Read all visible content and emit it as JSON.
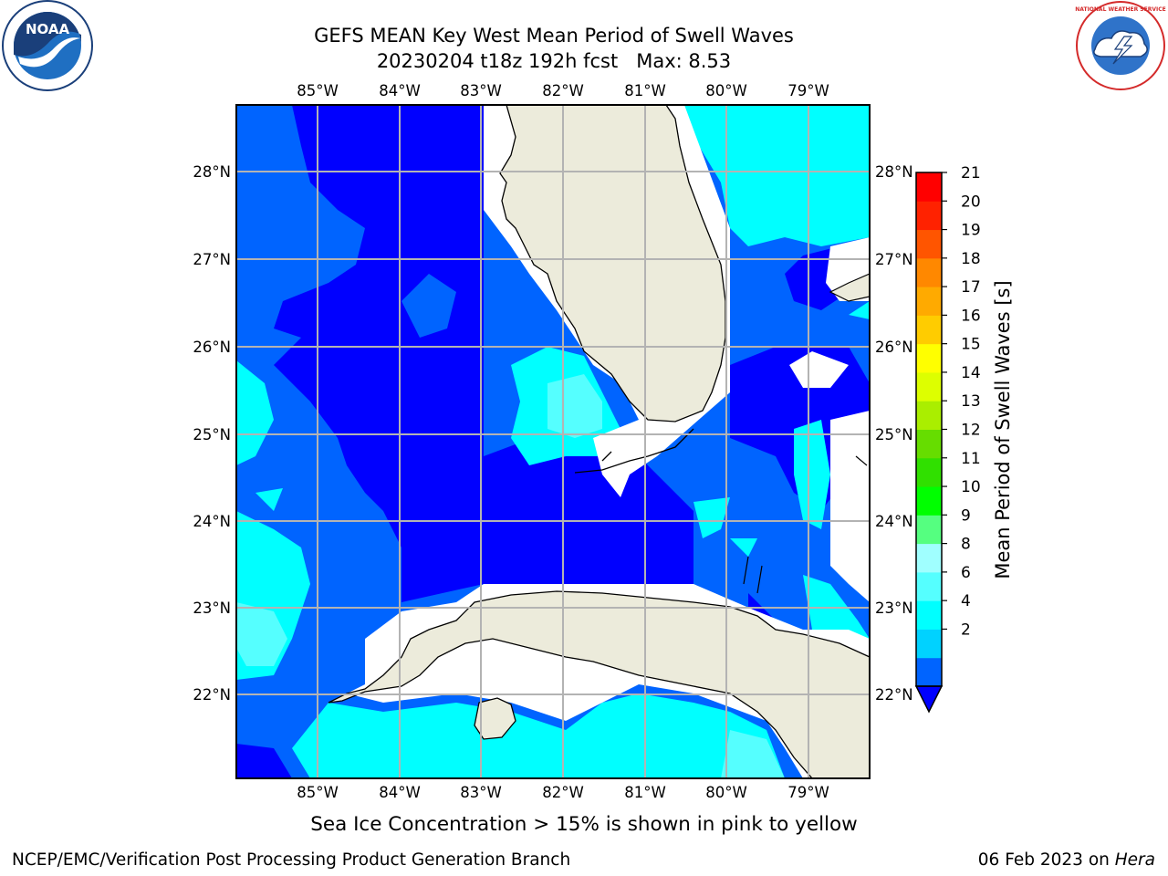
{
  "title": {
    "line1": "GEFS MEAN Key West Mean Period of Swell Waves",
    "line2": "20230204 t18z 192h fcst   Max: 8.53"
  },
  "footer": {
    "ice_note": "Sea Ice Concentration > 15% is shown in pink to yellow",
    "credit": "NCEP/EMC/Verification Post Processing Product Generation Branch",
    "date": "06 Feb 2023",
    "date_on": "on",
    "host": "Hera"
  },
  "logos": {
    "left": {
      "icon": "noaa-logo",
      "text": "NOAA"
    },
    "right": {
      "icon": "nws-logo",
      "text": "NATIONAL WEATHER SERVICE"
    }
  },
  "map": {
    "lon_labels": [
      "85°W",
      "84°W",
      "83°W",
      "82°W",
      "81°W",
      "80°W",
      "79°W"
    ],
    "lat_labels_left": [
      "28°N",
      "27°N",
      "26°N",
      "25°N",
      "24°N",
      "23°N",
      "22°N"
    ],
    "lat_labels_right": [
      "28°N",
      "27°N",
      "26°N",
      "25°N",
      "24°N",
      "23°N",
      "22°N"
    ],
    "land_color": "#ecebdb",
    "grid_color": "#b3b3b3"
  },
  "colorbar": {
    "label": "Mean Period of Swell Waves [s]",
    "ticks": [
      "2",
      "4",
      "6",
      "8",
      "9",
      "10",
      "11",
      "12",
      "13",
      "14",
      "15",
      "16",
      "17",
      "18",
      "19",
      "20",
      "21"
    ],
    "colors": [
      "#0064ff",
      "#00d2ff",
      "#00ffff",
      "#55ffff",
      "#a0ffff",
      "#55ff80",
      "#00ff00",
      "#30e000",
      "#66dd00",
      "#aaee00",
      "#ddff00",
      "#ffff00",
      "#ffcc00",
      "#ffaa00",
      "#ff8800",
      "#ff5500",
      "#ff2200",
      "#ff0000"
    ],
    "under_color": "#0000ff"
  }
}
